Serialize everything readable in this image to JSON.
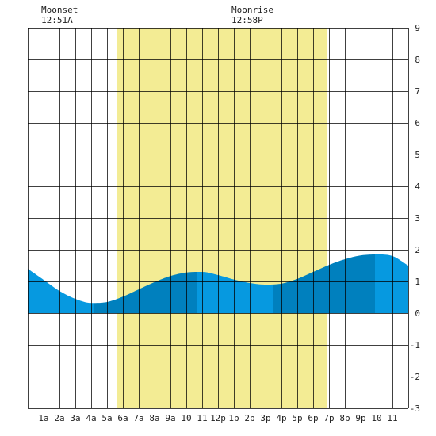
{
  "moon": {
    "moonset_label": "Moonset",
    "moonset_time": "12:51A",
    "moonset_hour": 0.85,
    "moonrise_label": "Moonrise",
    "moonrise_time": "12:58P",
    "moonrise_hour": 12.97
  },
  "chart_data": {
    "type": "area",
    "title": "",
    "xlabel": "",
    "ylabel": "",
    "xlim": [
      0,
      24
    ],
    "ylim": [
      -3,
      9
    ],
    "grid": true,
    "x_tick_labels": [
      "1a",
      "2a",
      "3a",
      "4a",
      "5a",
      "6a",
      "7a",
      "8a",
      "9a",
      "10",
      "11",
      "12p",
      "1p",
      "2p",
      "3p",
      "4p",
      "5p",
      "6p",
      "7p",
      "8p",
      "9p",
      "10",
      "11"
    ],
    "y_tick_labels": [
      "9",
      "8",
      "7",
      "6",
      "5",
      "4",
      "3",
      "2",
      "1",
      "0",
      "-1",
      "-2",
      "-3"
    ],
    "daylight": {
      "start_hour": 5.6,
      "end_hour": 18.9
    },
    "tide_extremes": [
      {
        "type": "low",
        "hour": 4.2,
        "height": 0.3
      },
      {
        "type": "high",
        "hour": 10.7,
        "height": 1.3
      },
      {
        "type": "low",
        "hour": 15.5,
        "height": 0.9
      },
      {
        "type": "high",
        "hour": 21.9,
        "height": 1.85
      }
    ],
    "series": [
      {
        "x": [
          0,
          1,
          2,
          3,
          4,
          5,
          6,
          7,
          8,
          9,
          10,
          11,
          12,
          13,
          14,
          15,
          16,
          17,
          18,
          19,
          20,
          21,
          22,
          23,
          24
        ],
        "values": [
          1.4,
          1.05,
          0.7,
          0.45,
          0.32,
          0.35,
          0.52,
          0.75,
          0.98,
          1.17,
          1.28,
          1.3,
          1.2,
          1.06,
          0.95,
          0.9,
          0.93,
          1.08,
          1.3,
          1.52,
          1.7,
          1.82,
          1.85,
          1.8,
          1.5
        ]
      }
    ],
    "colors": {
      "daylight": "#f3ec94",
      "tide_light": "#0699e0",
      "tide_dark": "#0080be",
      "grid": "#000000"
    }
  }
}
